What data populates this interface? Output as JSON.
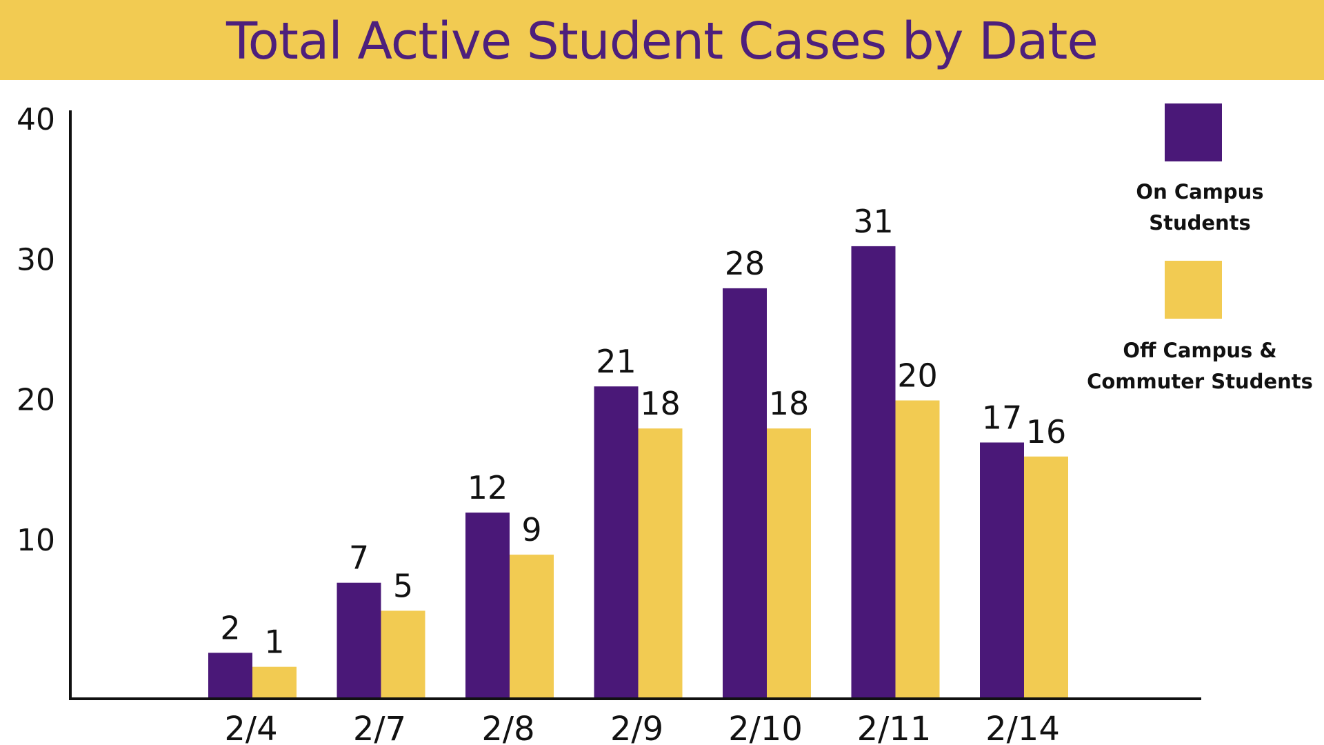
{
  "colors": {
    "on_campus": "#4a1878",
    "off_campus": "#f2cb52",
    "title_bar": "#f2cb52",
    "title_text": "#4d1f7c",
    "axis": "#111111",
    "text": "#111111"
  },
  "chart_data": {
    "type": "bar",
    "title": "Total Active Student Cases by Date",
    "xlabel": "",
    "ylabel": "",
    "categories": [
      "2/4",
      "2/7",
      "2/8",
      "2/9",
      "2/10",
      "2/11",
      "2/14"
    ],
    "series": [
      {
        "name": "On Campus Students",
        "values": [
          2,
          7,
          12,
          21,
          28,
          31,
          17
        ]
      },
      {
        "name": "Off Campus & Commuter Students",
        "values": [
          1,
          5,
          9,
          18,
          18,
          20,
          16
        ]
      }
    ],
    "y_ticks": [
      10,
      20,
      30,
      40
    ],
    "ylim": [
      0,
      42
    ],
    "grid": false,
    "legend_position": "right"
  },
  "legend": {
    "on_campus_line1": "On Campus",
    "on_campus_line2": "Students",
    "off_campus_line1": "Off Campus &",
    "off_campus_line2": "Commuter Students"
  }
}
